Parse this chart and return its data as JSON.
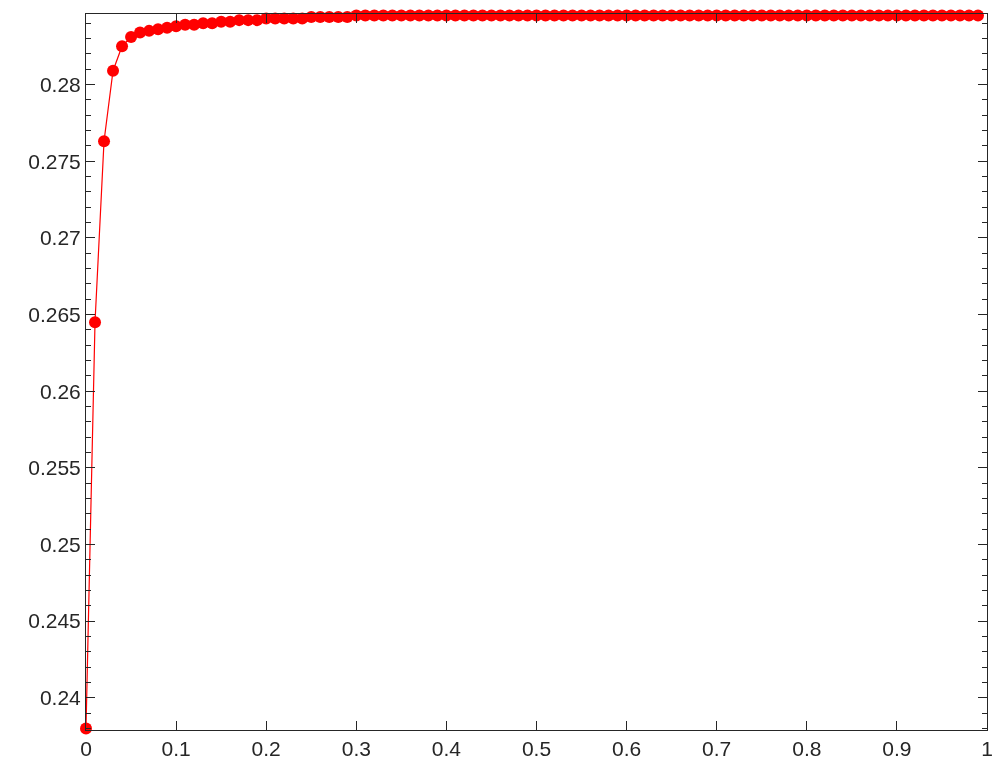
{
  "chart_data": {
    "type": "line",
    "marker": "circle",
    "line_style": "solid",
    "x": [
      0,
      0.01,
      0.02,
      0.03,
      0.04,
      0.05,
      0.06,
      0.07,
      0.08,
      0.09,
      0.1,
      0.11,
      0.12,
      0.13,
      0.14,
      0.15,
      0.16,
      0.17,
      0.18,
      0.19,
      0.2,
      0.21,
      0.22,
      0.23,
      0.24,
      0.25,
      0.26,
      0.27,
      0.28,
      0.29,
      0.3,
      0.31,
      0.32,
      0.33,
      0.34,
      0.35,
      0.36,
      0.37,
      0.38,
      0.39,
      0.4,
      0.41,
      0.42,
      0.43,
      0.44,
      0.45,
      0.46,
      0.47,
      0.48,
      0.49,
      0.5,
      0.51,
      0.52,
      0.53,
      0.54,
      0.55,
      0.56,
      0.57,
      0.58,
      0.59,
      0.6,
      0.61,
      0.62,
      0.63,
      0.64,
      0.65,
      0.66,
      0.67,
      0.68,
      0.69,
      0.7,
      0.71,
      0.72,
      0.73,
      0.74,
      0.75,
      0.76,
      0.77,
      0.78,
      0.79,
      0.8,
      0.81,
      0.82,
      0.83,
      0.84,
      0.85,
      0.86,
      0.87,
      0.88,
      0.89,
      0.9,
      0.91,
      0.92,
      0.93,
      0.94,
      0.95,
      0.96,
      0.97,
      0.98,
      0.99
    ],
    "series": [
      {
        "color": "#ff0000",
        "values": [
          0.238,
          0.2645,
          0.2763,
          0.2809,
          0.2825,
          0.2831,
          0.2834,
          0.2835,
          0.2836,
          0.2837,
          0.2838,
          0.2839,
          0.2839,
          0.284,
          0.284,
          0.2841,
          0.2841,
          0.2842,
          0.2842,
          0.2842,
          0.2843,
          0.2843,
          0.2843,
          0.2843,
          0.2843,
          0.2844,
          0.2844,
          0.2844,
          0.2844,
          0.2844,
          0.2845,
          0.2845,
          0.2845,
          0.2845,
          0.2845,
          0.2845,
          0.2845,
          0.2845,
          0.2845,
          0.2845,
          0.2845,
          0.2845,
          0.2845,
          0.2845,
          0.2845,
          0.2845,
          0.2845,
          0.2845,
          0.2845,
          0.2845,
          0.2845,
          0.2845,
          0.2845,
          0.2845,
          0.2845,
          0.2845,
          0.2845,
          0.2845,
          0.2845,
          0.2845,
          0.2845,
          0.2845,
          0.2845,
          0.2845,
          0.2845,
          0.2845,
          0.2845,
          0.2845,
          0.2845,
          0.2845,
          0.2845,
          0.2845,
          0.2845,
          0.2845,
          0.2845,
          0.2845,
          0.2845,
          0.2845,
          0.2845,
          0.2845,
          0.2845,
          0.2845,
          0.2845,
          0.2845,
          0.2845,
          0.2845,
          0.2845,
          0.2845,
          0.2845,
          0.2845,
          0.2845,
          0.2845,
          0.2845,
          0.2845,
          0.2845,
          0.2845,
          0.2845,
          0.2845,
          0.2845,
          0.2845
        ]
      }
    ],
    "xlim": [
      0,
      1
    ],
    "xticks": [
      0,
      0.1,
      0.2,
      0.3,
      0.4,
      0.5,
      0.6,
      0.7,
      0.8,
      0.9,
      1
    ],
    "ylim": [
      0.2379,
      0.2846
    ],
    "yticks": [
      0.24,
      0.245,
      0.25,
      0.255,
      0.26,
      0.265,
      0.27,
      0.275,
      0.28
    ]
  }
}
